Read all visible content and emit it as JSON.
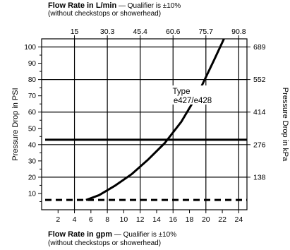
{
  "top_note": {
    "title": "Flow Rate in L/min",
    "qualifier": " — Qualifier is ±10%",
    "subnote": "(without checkstops or showerhead)"
  },
  "bottom_note": {
    "title": "Flow Rate in gpm",
    "qualifier": " — Qualifier is ±10%",
    "subnote": "(without checkstops or showerhead)"
  },
  "chart_data": {
    "type": "line",
    "x_axis_bottom": {
      "label": "Flow Rate in gpm",
      "range": [
        0,
        25
      ],
      "ticks": [
        2,
        4,
        6,
        8,
        10,
        12,
        14,
        16,
        18,
        20,
        22,
        24
      ]
    },
    "x_axis_top": {
      "label": "Flow Rate in L/min",
      "ticks": [
        {
          "label": "15",
          "gpm": 4
        },
        {
          "label": "30.3",
          "gpm": 8
        },
        {
          "label": "45.4",
          "gpm": 12
        },
        {
          "label": "60.6",
          "gpm": 16
        },
        {
          "label": "75.7",
          "gpm": 20
        },
        {
          "label": "90.8",
          "gpm": 24
        }
      ]
    },
    "y_axis_left": {
      "label": "Pressure Drop in PSI",
      "range": [
        0,
        105
      ],
      "ticks": [
        10,
        20,
        30,
        40,
        50,
        60,
        70,
        80,
        90,
        100
      ]
    },
    "y_axis_right": {
      "label": "Pressure Drop in kPa",
      "ticks": [
        {
          "label": "138",
          "psi": 20
        },
        {
          "label": "276",
          "psi": 40
        },
        {
          "label": "414",
          "psi": 60
        },
        {
          "label": "552",
          "psi": 80
        },
        {
          "label": "689",
          "psi": 100
        }
      ]
    },
    "vertical_gridlines_gpm": [
      4,
      8,
      12,
      16,
      20,
      24
    ],
    "horizontal_gridlines_psi": [
      20,
      40,
      60,
      80,
      100
    ],
    "series": [
      {
        "name": "Type e427/e428",
        "annotation": [
          "Type",
          "e427/e428"
        ],
        "x": [
          5.4,
          7,
          9,
          11,
          13,
          15,
          17,
          19,
          21,
          22.2
        ],
        "y": [
          6,
          9,
          15,
          22,
          31,
          41,
          54,
          71,
          92,
          105
        ]
      }
    ],
    "reference_lines": [
      {
        "psi": 43,
        "style": "solid"
      },
      {
        "psi": 6,
        "style": "dashed"
      }
    ]
  }
}
